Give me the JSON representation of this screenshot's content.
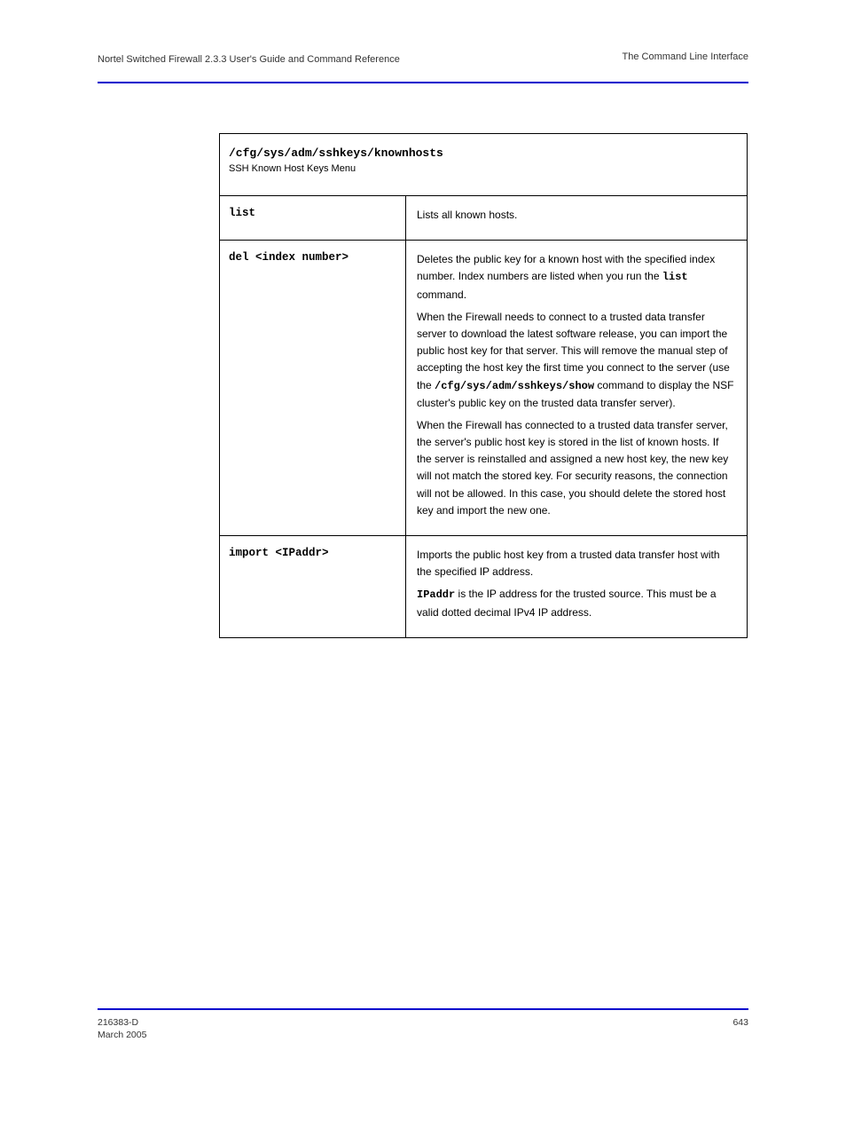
{
  "header": {
    "left": "Nortel Switched Firewall 2.3.3 User's Guide and Command Reference",
    "right": "The Command Line Interface"
  },
  "table": {
    "path": "/cfg/sys/adm/sshkeys/knownhosts",
    "caption": "SSH Known Host Keys Menu",
    "rows": [
      {
        "cmd": "list",
        "desc_plain": "Lists all known hosts."
      },
      {
        "cmd": "del <index number>",
        "desc_parts": [
          {
            "t": "text",
            "v": "Deletes the public key for a known host with the specified index number. Index numbers are listed when you run the "
          },
          {
            "t": "mono",
            "v": "list"
          },
          {
            "t": "text",
            "v": " command."
          }
        ],
        "desc_para2": "When the Firewall needs to connect to a trusted data transfer server to download the latest software release, you can "
      },
      {
        "cmd": "",
        "mid_parts": [
          {
            "t": "text",
            "v": "import the public host key for that server. This will remove the manual step of accepting the host key the first time you connect to the server (use the "
          },
          {
            "t": "mono",
            "v": "/cfg/sys/adm/sshkeys/show"
          },
          {
            "t": "text",
            "v": " command to display the NSF cluster's public key on the trusted data transfer server)."
          }
        ],
        "mid_para2": "When the Firewall has connected to a trusted data transfer server, the server's public host key is stored in the list of known hosts. If the server is reinstalled and assigned a new host key, the new key will not match the stored key. For security reasons, the connection will not be allowed. In this case, you should delete the stored host key and import the new one."
      },
      {
        "cmd": "import <IPaddr>",
        "desc_parts": [
          {
            "t": "text",
            "v": "Imports the public host key from a trusted data transfer host with the specified IP address."
          }
        ],
        "desc_para2_parts": [
          {
            "t": "mono",
            "v": "IPaddr"
          },
          {
            "t": "text",
            "v": " is the IP address for the trusted source. This must be a valid dotted decimal IPv4 IP address."
          }
        ]
      }
    ]
  },
  "footer": {
    "doc_id": "216383-D",
    "date": "March 2005",
    "page": "643"
  },
  "colors": {
    "rule": "#0000cc",
    "text": "#000000",
    "background": "#ffffff"
  }
}
